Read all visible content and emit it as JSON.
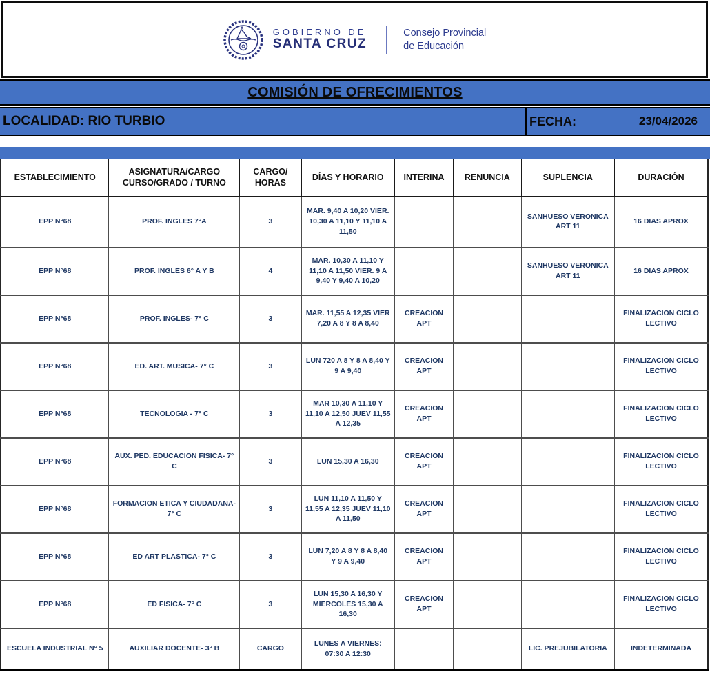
{
  "header": {
    "logo": {
      "seal_icon": "santa-cruz-provincial-seal",
      "gobierno_line": "GOBIERNO DE",
      "santa_cruz_line": "SANTA CRUZ",
      "consejo_line1": "Consejo Provincial",
      "consejo_line2": "de Educación"
    },
    "title": "COMISIÓN DE OFRECIMIENTOS",
    "localidad": "LOCALIDAD: RIO TURBIO",
    "fecha_label": "FECHA:",
    "fecha_value": "23/04/2026"
  },
  "colors": {
    "bar_blue": "#4472c4",
    "body_text_navy": "#1f3864",
    "logo_navy": "#2b3480",
    "border_black": "#000000"
  },
  "table": {
    "columns": [
      "ESTABLECIMIENTO",
      "ASIGNATURA/CARGO\nCURSO/GRADO / TURNO",
      "CARGO/\nHORAS",
      "DÍAS Y HORARIO",
      "INTERINA",
      "RENUNCIA",
      "SUPLENCIA",
      "DURACIÓN"
    ],
    "rows": [
      [
        "EPP N°68",
        "PROF. INGLES 7°A",
        "3",
        "MAR. 9,40 A 10,20  VIER. 10,30 A 11,10 Y 11,10 A 11,50",
        "",
        "",
        "SANHUESO VERONICA ART 11",
        "16 DIAS APROX"
      ],
      [
        "EPP N°68",
        "PROF. INGLES 6° A Y B",
        "4",
        "MAR. 10,30 A 11,10  Y 11,10 A 11,50 VIER. 9 A 9,40 Y 9,40 A 10,20",
        "",
        "",
        "SANHUESO VERONICA ART 11",
        "16 DIAS APROX"
      ],
      [
        "EPP N°68",
        "PROF. INGLES- 7° C",
        "3",
        "MAR. 11,55 A 12,35 VIER 7,20 A 8 Y 8 A 8,40",
        "CREACION APT",
        "",
        "",
        "FINALIZACION CICLO LECTIVO"
      ],
      [
        "EPP N°68",
        "ED. ART. MUSICA- 7° C",
        "3",
        "LUN 720 A 8 Y 8 A 8,40 Y 9 A 9,40",
        "CREACION APT",
        "",
        "",
        "FINALIZACION CICLO LECTIVO"
      ],
      [
        "EPP N°68",
        "TECNOLOGIA - 7° C",
        "3",
        "MAR 10,30 A 11,10 Y 11,10 A 12,50 JUEV 11,55 A 12,35",
        "CREACION APT",
        "",
        "",
        "FINALIZACION CICLO LECTIVO"
      ],
      [
        "EPP N°68",
        "AUX. PED. EDUCACION FISICA- 7° C",
        "3",
        "LUN 15,30 A 16,30",
        "CREACION APT",
        "",
        "",
        "FINALIZACION CICLO LECTIVO"
      ],
      [
        "EPP N°68",
        "FORMACION ETICA Y CIUDADANA- 7° C",
        "3",
        "LUN 11,10 A 11,50 Y 11,55 A 12,35 JUEV 11,10 A 11,50",
        "CREACION APT",
        "",
        "",
        "FINALIZACION CICLO LECTIVO"
      ],
      [
        "EPP N°68",
        "ED ART PLASTICA- 7° C",
        "3",
        "LUN 7,20 A 8 Y 8 A 8,40 Y 9 A 9,40",
        "CREACION APT",
        "",
        "",
        "FINALIZACION CICLO LECTIVO"
      ],
      [
        "EPP N°68",
        "ED FISICA- 7° C",
        "3",
        "LUN 15,30 A 16,30 Y MIERCOLES 15,30 A 16,30",
        "CREACION APT",
        "",
        "",
        "FINALIZACION CICLO LECTIVO"
      ],
      [
        "ESCUELA INDUSTRIAL N° 5",
        "AUXILIAR DOCENTE- 3° B",
        "CARGO",
        "LUNES A VIERNES: 07:30 A 12:30",
        "",
        "",
        "LIC. PREJUBILATORIA",
        "INDETERMINADA"
      ]
    ],
    "column_widths_pct": [
      15.3,
      18.5,
      8.7,
      13.2,
      8.3,
      9.6,
      13.2,
      13.2
    ]
  }
}
